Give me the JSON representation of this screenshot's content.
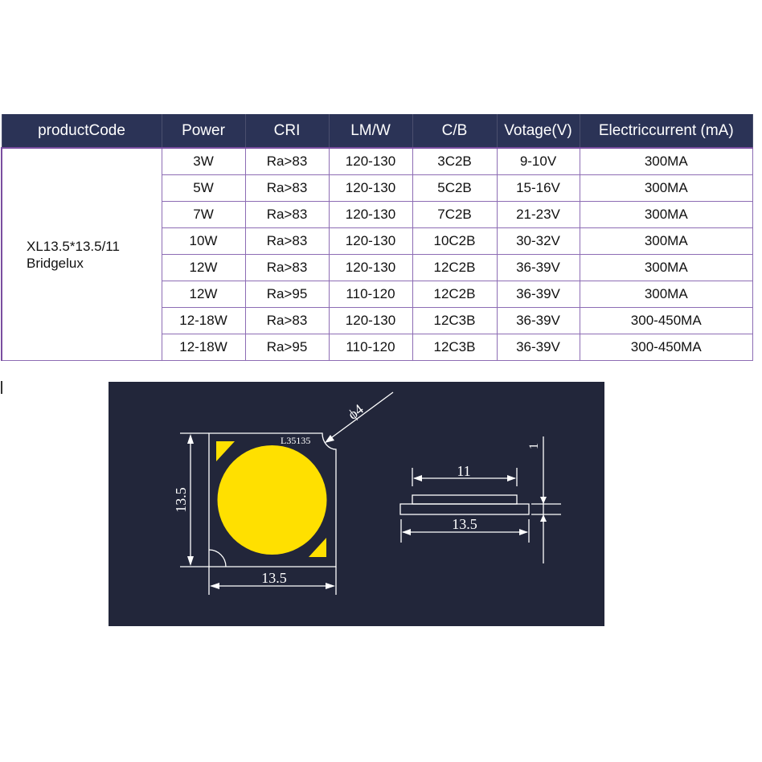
{
  "table": {
    "headers": [
      "productCode",
      "Power",
      "CRI",
      "LM/W",
      "C/B",
      "Votage(V)",
      "Electriccurrent (mA)"
    ],
    "product_code": [
      "XL13.5*13.5/11",
      "Bridgelux"
    ],
    "rows": [
      [
        "3W",
        "Ra>83",
        "120-130",
        "3C2B",
        "9-10V",
        "300MA"
      ],
      [
        "5W",
        "Ra>83",
        "120-130",
        "5C2B",
        "15-16V",
        "300MA"
      ],
      [
        "7W",
        "Ra>83",
        "120-130",
        "7C2B",
        "21-23V",
        "300MA"
      ],
      [
        "10W",
        "Ra>83",
        "120-130",
        "10C2B",
        "30-32V",
        "300MA"
      ],
      [
        "12W",
        "Ra>83",
        "120-130",
        "12C2B",
        "36-39V",
        "300MA"
      ],
      [
        "12W",
        "Ra>95",
        "110-120",
        "12C2B",
        "36-39V",
        "300MA"
      ],
      [
        "12-18W",
        "Ra>83",
        "120-130",
        "12C3B",
        "36-39V",
        "300-450MA"
      ],
      [
        "12-18W",
        "Ra>95",
        "110-120",
        "12C3B",
        "36-39V",
        "300-450MA"
      ]
    ]
  },
  "diagram": {
    "chip_label": "L35135",
    "hole_dim": "ϕ4",
    "height_dim": "13.5",
    "width_dim": "13.5",
    "side_top_dim": "11",
    "side_width_dim": "13.5",
    "thickness_dim": "1",
    "colors": {
      "background": "#22263a",
      "emitter": "#ffe000",
      "header": "#2b3356",
      "border": "#7a4ea0"
    }
  }
}
